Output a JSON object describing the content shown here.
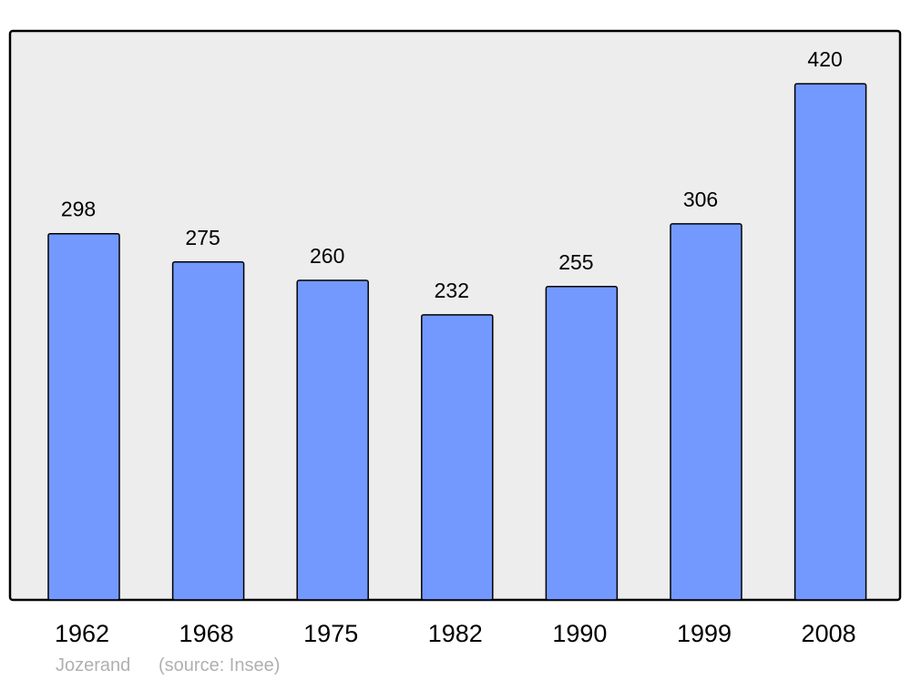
{
  "chart_data": {
    "type": "bar",
    "categories": [
      "1962",
      "1968",
      "1975",
      "1982",
      "1990",
      "1999",
      "2008"
    ],
    "values": [
      298,
      275,
      260,
      232,
      255,
      306,
      420
    ],
    "ylim": [
      0,
      463
    ],
    "grid": false,
    "colors": {
      "bar": "#7399ff",
      "background": "#ededed",
      "border": "#000000"
    }
  },
  "footer": {
    "place": "Jozerand",
    "source": "(source: Insee)"
  }
}
